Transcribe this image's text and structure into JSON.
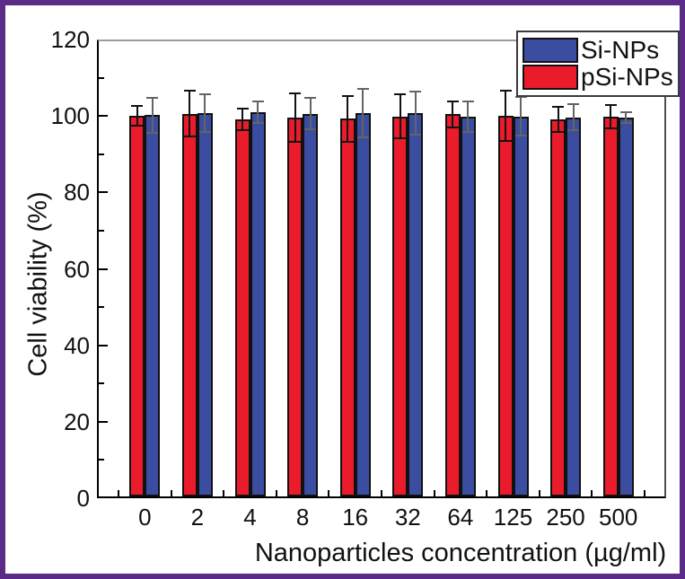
{
  "figure": {
    "border_color": "#5B2C87",
    "background_color": "#FFFFFF"
  },
  "chart_data": {
    "type": "bar",
    "title": "",
    "xlabel": "Nanoparticles concentration (µg/ml)",
    "ylabel": "Cell viability (%)",
    "categories": [
      "0",
      "2",
      "4",
      "8",
      "16",
      "32",
      "64",
      "125",
      "250",
      "500"
    ],
    "series": [
      {
        "name": "Si-NPs",
        "color": "#3B4DA0",
        "error_bar_color": "#646464",
        "values": [
          100.2,
          100.7,
          101.0,
          100.6,
          100.8,
          100.8,
          99.7,
          99.9,
          99.6,
          99.5
        ],
        "errors": [
          4.6,
          5.0,
          2.8,
          4.1,
          6.3,
          5.6,
          4.0,
          5.0,
          3.4,
          1.4
        ]
      },
      {
        "name": "pSi-NPs",
        "color": "#EA1C2C",
        "error_bar_color": "#111111",
        "values": [
          100.0,
          100.6,
          99.1,
          99.5,
          99.3,
          99.9,
          100.4,
          100.0,
          99.2,
          99.8
        ],
        "errors": [
          2.6,
          6.0,
          2.9,
          6.3,
          6.0,
          5.8,
          3.5,
          6.6,
          3.3,
          3.0
        ]
      }
    ],
    "bar_draw_order": [
      "pSi-NPs",
      "Si-NPs"
    ],
    "ylim": [
      0,
      120
    ],
    "yticks": [
      0,
      20,
      40,
      60,
      80,
      100,
      120
    ],
    "y_minor_ticks": [
      10,
      30,
      50,
      70,
      90,
      110
    ],
    "legend_position": "top-right",
    "grid": false
  }
}
